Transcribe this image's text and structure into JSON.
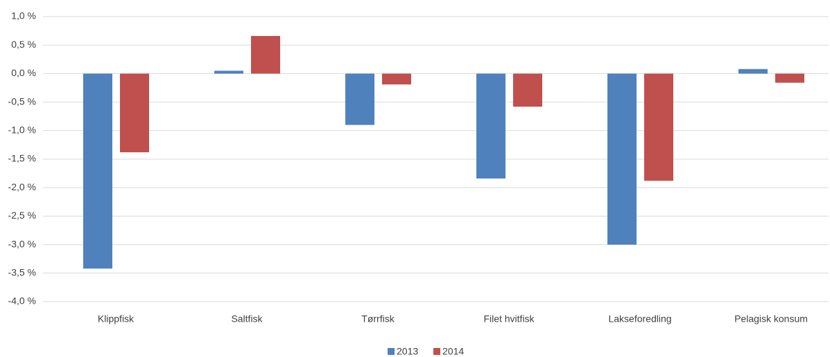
{
  "chart_data": {
    "type": "bar",
    "categories": [
      "Klippfisk",
      "Saltfisk",
      "Tørrfisk",
      "Filet hvitfisk",
      "Lakseforedling",
      "Pelagisk konsum"
    ],
    "series": [
      {
        "name": "2013",
        "color": "#4f81bd",
        "values": [
          -3.42,
          0.05,
          -0.9,
          -1.84,
          -3.0,
          0.08
        ]
      },
      {
        "name": "2014",
        "color": "#c0504d",
        "values": [
          -1.38,
          0.66,
          -0.19,
          -0.58,
          -1.88,
          -0.16
        ]
      }
    ],
    "ylim": [
      -4.0,
      1.0
    ],
    "yticks": [
      {
        "value": 1.0,
        "label": "1,0 %"
      },
      {
        "value": 0.5,
        "label": "0,5 %"
      },
      {
        "value": 0.0,
        "label": "0,0 %"
      },
      {
        "value": -0.5,
        "label": "-0,5 %"
      },
      {
        "value": -1.0,
        "label": "-1,0 %"
      },
      {
        "value": -1.5,
        "label": "-1,5 %"
      },
      {
        "value": -2.0,
        "label": "-2,0 %"
      },
      {
        "value": -2.5,
        "label": "-2,5 %"
      },
      {
        "value": -3.0,
        "label": "-3,0 %"
      },
      {
        "value": -3.5,
        "label": "-3,5 %"
      },
      {
        "value": -4.0,
        "label": "-4,0 %"
      }
    ],
    "grid": true,
    "legend": "bottom"
  }
}
